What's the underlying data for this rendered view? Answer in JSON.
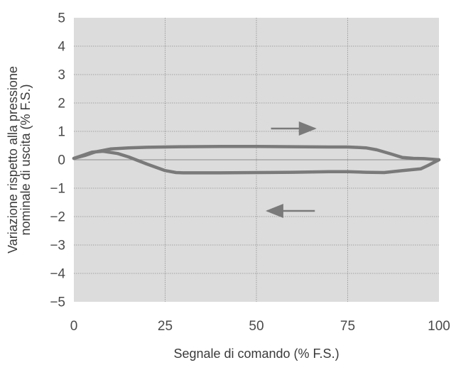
{
  "chart_data": {
    "type": "line",
    "xlabel": "Segnale di comando (% F.S.)",
    "ylabel_lines": [
      "Variazione rispetto alla pressione",
      "nominale di uscita (% F.S.)"
    ],
    "xlim": [
      0,
      100
    ],
    "ylim": [
      -5,
      5
    ],
    "x_ticks": [
      "0",
      "25",
      "50",
      "75",
      "100"
    ],
    "y_ticks": [
      "5",
      "4",
      "3",
      "2",
      "1",
      "0",
      "−1",
      "−2",
      "−3",
      "−4",
      "−5"
    ],
    "grid": true,
    "series": [
      {
        "direction": "increasing",
        "x": [
          0,
          3,
          6,
          10,
          15,
          20,
          30,
          40,
          50,
          60,
          70,
          75,
          80,
          83,
          87,
          90,
          93,
          96,
          100
        ],
        "y": [
          0.05,
          0.15,
          0.28,
          0.38,
          0.42,
          0.44,
          0.46,
          0.47,
          0.47,
          0.46,
          0.45,
          0.45,
          0.42,
          0.35,
          0.2,
          0.08,
          0.05,
          0.04,
          0
        ]
      },
      {
        "direction": "decreasing",
        "x": [
          100,
          97,
          95,
          90,
          85,
          80,
          75,
          70,
          60,
          50,
          40,
          30,
          28,
          25,
          20,
          15,
          12,
          8,
          5,
          3,
          0
        ],
        "y": [
          0,
          -0.2,
          -0.32,
          -0.38,
          -0.45,
          -0.44,
          -0.42,
          -0.42,
          -0.44,
          -0.45,
          -0.46,
          -0.46,
          -0.45,
          -0.38,
          -0.15,
          0.1,
          0.22,
          0.3,
          0.27,
          0.18,
          0.05
        ]
      }
    ],
    "arrows": [
      {
        "direction": "right",
        "x_start": 54,
        "x_end": 66,
        "y": 1.1
      },
      {
        "direction": "left",
        "x_start": 66,
        "x_end": 53,
        "y": -1.8
      }
    ],
    "colors": {
      "plot_bg": "#dcdcdc",
      "curve": "#7a7a7a",
      "grid": "#8f8f8f",
      "zero_line": "#9a9a9a",
      "arrow": "#7a7a7a"
    }
  }
}
